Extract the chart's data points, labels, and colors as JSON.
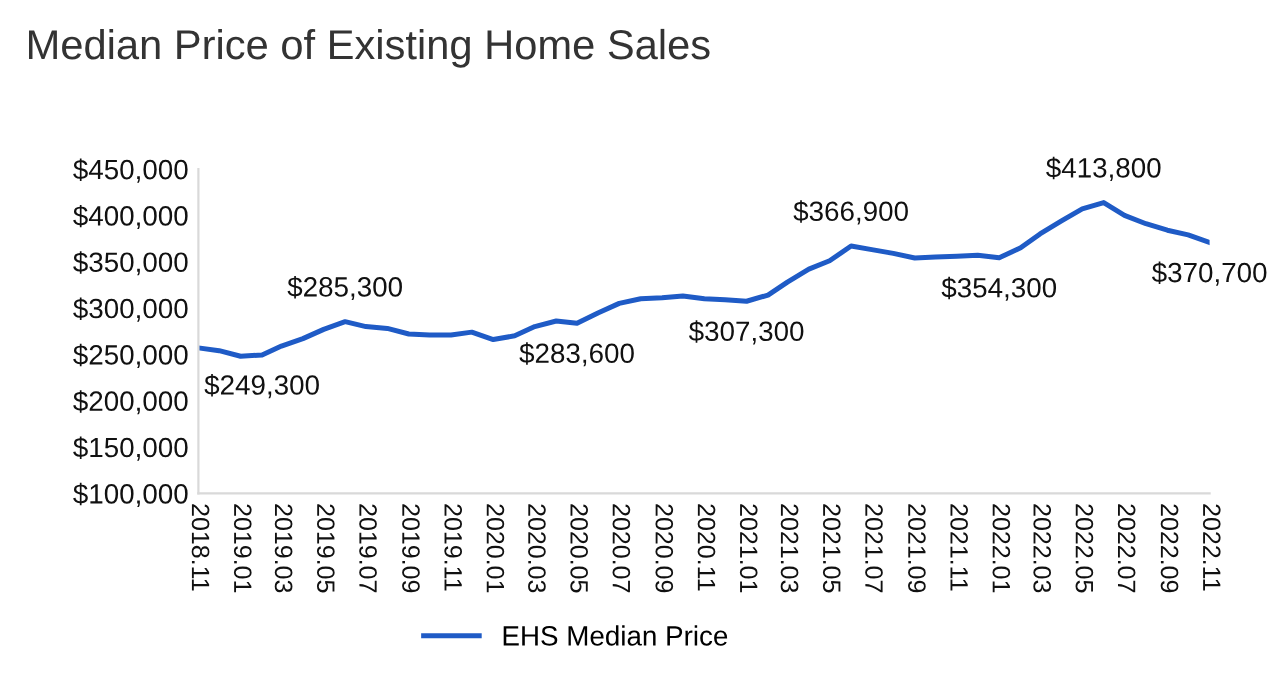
{
  "chart_data": {
    "type": "line",
    "title": "Median Price of Existing Home Sales",
    "x": [
      "2018-11",
      "2018-12",
      "2019-01",
      "2019-02",
      "2019-03",
      "2019-04",
      "2019-05",
      "2019-06",
      "2019-07",
      "2019-08",
      "2019-09",
      "2019-10",
      "2019-11",
      "2019-12",
      "2020-01",
      "2020-02",
      "2020-03",
      "2020-04",
      "2020-05",
      "2020-06",
      "2020-07",
      "2020-08",
      "2020-09",
      "2020-10",
      "2020-11",
      "2020-12",
      "2021-01",
      "2021-02",
      "2021-03",
      "2021-04",
      "2021-05",
      "2021-06",
      "2021-07",
      "2021-08",
      "2021-09",
      "2021-10",
      "2021-11",
      "2021-12",
      "2022-01",
      "2022-02",
      "2022-03",
      "2022-04",
      "2022-05",
      "2022-06",
      "2022-07",
      "2022-08",
      "2022-09",
      "2022-10",
      "2022-11"
    ],
    "series": [
      {
        "name": "EHS Median Price",
        "color": "#1f5bc6",
        "values": [
          257000,
          254000,
          248000,
          249300,
          259000,
          267000,
          277000,
          285300,
          280000,
          278000,
          272000,
          271000,
          271000,
          274000,
          266000,
          270000,
          280000,
          286000,
          283600,
          295000,
          305000,
          310000,
          311000,
          313000,
          310000,
          309000,
          307300,
          314000,
          328000,
          342000,
          351000,
          366900,
          363000,
          359000,
          354000,
          355000,
          356000,
          357000,
          354300,
          365000,
          380000,
          394000,
          407000,
          413800,
          400000,
          391000,
          384000,
          379000,
          370700
        ],
        "value_labels": [
          null,
          null,
          null,
          "$249,300",
          null,
          null,
          null,
          "$285,300",
          null,
          null,
          null,
          null,
          null,
          null,
          null,
          null,
          null,
          null,
          "$283,600",
          null,
          null,
          null,
          null,
          null,
          null,
          null,
          "$307,300",
          null,
          null,
          null,
          null,
          "$366,900",
          null,
          null,
          null,
          null,
          null,
          null,
          "$354,300",
          null,
          null,
          null,
          null,
          "$413,800",
          null,
          null,
          null,
          null,
          "$370,700"
        ]
      }
    ],
    "xlim": [
      "2018-11",
      "2022-11"
    ],
    "xticks": [
      {
        "value": "2018-11",
        "label": "2018.11"
      },
      {
        "value": "2019-01",
        "label": "2019.01"
      },
      {
        "value": "2019-03",
        "label": "2019.03"
      },
      {
        "value": "2019-05",
        "label": "2019.05"
      },
      {
        "value": "2019-07",
        "label": "2019.07"
      },
      {
        "value": "2019-09",
        "label": "2019.09"
      },
      {
        "value": "2019-11",
        "label": "2019.11"
      },
      {
        "value": "2020-01",
        "label": "2020.01"
      },
      {
        "value": "2020-03",
        "label": "2020.03"
      },
      {
        "value": "2020-05",
        "label": "2020.05"
      },
      {
        "value": "2020-07",
        "label": "2020.07"
      },
      {
        "value": "2020-09",
        "label": "2020.09"
      },
      {
        "value": "2020-11",
        "label": "2020.11"
      },
      {
        "value": "2021-01",
        "label": "2021.01"
      },
      {
        "value": "2021-03",
        "label": "2021.03"
      },
      {
        "value": "2021-05",
        "label": "2021.05"
      },
      {
        "value": "2021-07",
        "label": "2021.07"
      },
      {
        "value": "2021-09",
        "label": "2021.09"
      },
      {
        "value": "2021-11",
        "label": "2021.11"
      },
      {
        "value": "2022-01",
        "label": "2022.01"
      },
      {
        "value": "2022-03",
        "label": "2022.03"
      },
      {
        "value": "2022-05",
        "label": "2022.05"
      },
      {
        "value": "2022-07",
        "label": "2022.07"
      },
      {
        "value": "2022-09",
        "label": "2022.09"
      },
      {
        "value": "2022-11",
        "label": "2022.11"
      }
    ],
    "ylim": [
      100000,
      450000
    ],
    "yticks": [
      {
        "value": 100000,
        "label": "$100,000"
      },
      {
        "value": 150000,
        "label": "$150,000"
      },
      {
        "value": 200000,
        "label": "$200,000"
      },
      {
        "value": 250000,
        "label": "$250,000"
      },
      {
        "value": 300000,
        "label": "$300,000"
      },
      {
        "value": 350000,
        "label": "$350,000"
      },
      {
        "value": 400000,
        "label": "$400,000"
      },
      {
        "value": 450000,
        "label": "$450,000"
      }
    ],
    "grid": false,
    "legend": "bottom",
    "marker": "none",
    "line_style": "solid"
  }
}
